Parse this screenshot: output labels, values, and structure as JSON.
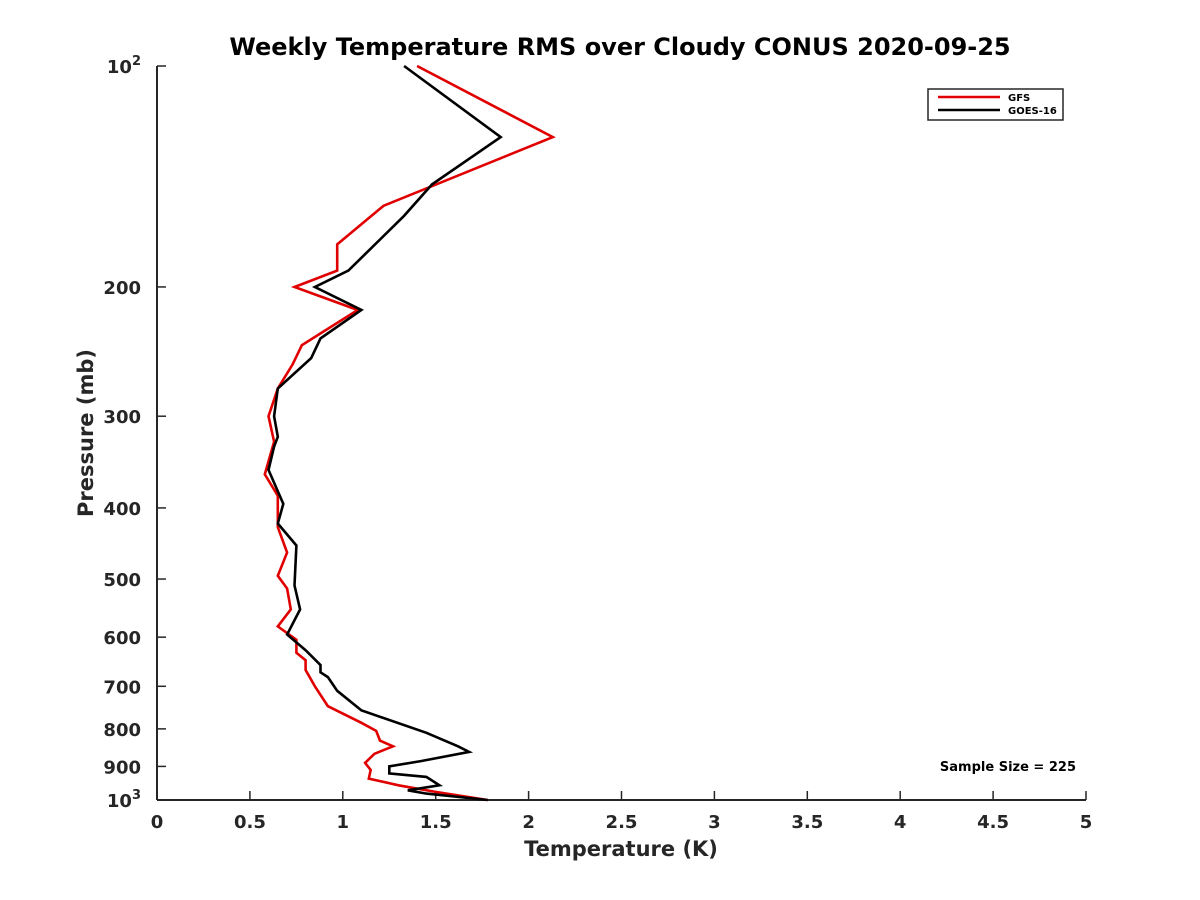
{
  "chart_data": {
    "type": "line",
    "title": "Weekly Temperature RMS over Cloudy CONUS 2020-09-25",
    "xlabel": "Temperature (K)",
    "ylabel": "Pressure (mb)",
    "xlim": [
      0,
      5
    ],
    "ylim": [
      100,
      1000
    ],
    "y_scale": "log",
    "y_reversed": true,
    "grid": false,
    "legend_position": "top-right",
    "x_ticks": [
      0,
      0.5,
      1,
      1.5,
      2,
      2.5,
      3,
      3.5,
      4,
      4.5,
      5
    ],
    "x_tick_labels": [
      "0",
      "0.5",
      "1",
      "1.5",
      "2",
      "2.5",
      "3",
      "3.5",
      "4",
      "4.5",
      "5"
    ],
    "y_ticks": [
      {
        "value": 100,
        "label": "10",
        "sup": "2"
      },
      {
        "value": 200,
        "label": "200",
        "sup": ""
      },
      {
        "value": 300,
        "label": "300",
        "sup": ""
      },
      {
        "value": 400,
        "label": "400",
        "sup": ""
      },
      {
        "value": 500,
        "label": "500",
        "sup": ""
      },
      {
        "value": 600,
        "label": "600",
        "sup": ""
      },
      {
        "value": 700,
        "label": "700",
        "sup": ""
      },
      {
        "value": 800,
        "label": "800",
        "sup": ""
      },
      {
        "value": 900,
        "label": "900",
        "sup": ""
      },
      {
        "value": 1000,
        "label": "10",
        "sup": "3"
      }
    ],
    "series": [
      {
        "name": "GFS",
        "color": "#e00000",
        "points": [
          [
            1.4,
            100
          ],
          [
            2.13,
            125
          ],
          [
            1.22,
            155
          ],
          [
            0.97,
            175
          ],
          [
            0.97,
            190
          ],
          [
            0.74,
            200
          ],
          [
            1.08,
            215
          ],
          [
            0.78,
            240
          ],
          [
            0.73,
            255
          ],
          [
            0.65,
            275
          ],
          [
            0.6,
            300
          ],
          [
            0.63,
            325
          ],
          [
            0.58,
            360
          ],
          [
            0.65,
            385
          ],
          [
            0.65,
            425
          ],
          [
            0.7,
            460
          ],
          [
            0.65,
            495
          ],
          [
            0.7,
            515
          ],
          [
            0.72,
            550
          ],
          [
            0.65,
            580
          ],
          [
            0.75,
            605
          ],
          [
            0.75,
            630
          ],
          [
            0.8,
            645
          ],
          [
            0.8,
            665
          ],
          [
            0.85,
            700
          ],
          [
            0.92,
            745
          ],
          [
            1.1,
            785
          ],
          [
            1.18,
            805
          ],
          [
            1.2,
            830
          ],
          [
            1.27,
            845
          ],
          [
            1.17,
            865
          ],
          [
            1.12,
            890
          ],
          [
            1.15,
            910
          ],
          [
            1.14,
            935
          ],
          [
            1.3,
            955
          ],
          [
            1.5,
            975
          ],
          [
            1.78,
            1000
          ]
        ]
      },
      {
        "name": "GOES-16",
        "color": "#000000",
        "points": [
          [
            1.33,
            100
          ],
          [
            1.85,
            125
          ],
          [
            1.48,
            145
          ],
          [
            1.33,
            160
          ],
          [
            1.03,
            190
          ],
          [
            0.85,
            200
          ],
          [
            1.1,
            215
          ],
          [
            0.88,
            235
          ],
          [
            0.83,
            250
          ],
          [
            0.65,
            275
          ],
          [
            0.63,
            300
          ],
          [
            0.65,
            320
          ],
          [
            0.63,
            330
          ],
          [
            0.6,
            355
          ],
          [
            0.68,
            395
          ],
          [
            0.65,
            420
          ],
          [
            0.75,
            450
          ],
          [
            0.74,
            510
          ],
          [
            0.77,
            550
          ],
          [
            0.7,
            595
          ],
          [
            0.8,
            625
          ],
          [
            0.88,
            655
          ],
          [
            0.88,
            670
          ],
          [
            0.92,
            680
          ],
          [
            0.97,
            710
          ],
          [
            1.1,
            755
          ],
          [
            1.45,
            810
          ],
          [
            1.62,
            845
          ],
          [
            1.68,
            860
          ],
          [
            1.42,
            885
          ],
          [
            1.25,
            900
          ],
          [
            1.25,
            920
          ],
          [
            1.45,
            930
          ],
          [
            1.52,
            955
          ],
          [
            1.35,
            970
          ],
          [
            1.45,
            980
          ],
          [
            1.78,
            1000
          ]
        ]
      }
    ],
    "annotation": "Sample Size = 225"
  }
}
